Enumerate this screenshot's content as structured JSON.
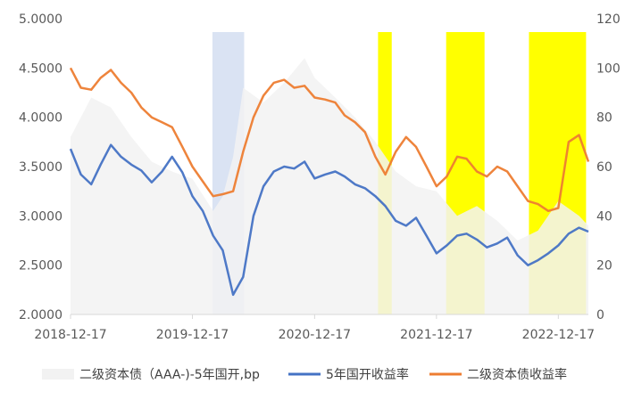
{
  "chart_data": {
    "type": "line",
    "x_ticks": [
      "2018-12-17",
      "2019-12-17",
      "2020-12-17",
      "2021-12-17",
      "2022-12-17"
    ],
    "y_left_ticks": [
      "2.0000",
      "2.5000",
      "3.0000",
      "3.5000",
      "4.0000",
      "4.5000",
      "5.0000"
    ],
    "y_right_ticks": [
      "0",
      "20",
      "40",
      "60",
      "80",
      "100",
      "120"
    ],
    "ylim_left": [
      2.0,
      5.0
    ],
    "ylim_right": [
      0,
      120
    ],
    "grid": false,
    "legend_position": "bottom",
    "series": [
      {
        "name": "二级资本债（AAA-)-5年国开,bp",
        "axis": "right",
        "type": "area",
        "color": "#f2f2f2",
        "x": [
          "2018-12-17",
          "2019-02-17",
          "2019-04-17",
          "2019-06-17",
          "2019-08-17",
          "2019-10-17",
          "2019-12-17",
          "2020-02-17",
          "2020-03-17",
          "2020-04-17",
          "2020-05-17",
          "2020-07-17",
          "2020-09-17",
          "2020-11-17",
          "2020-12-17",
          "2021-02-17",
          "2021-04-17",
          "2021-06-17",
          "2021-08-17",
          "2021-10-17",
          "2021-12-17",
          "2022-02-17",
          "2022-04-17",
          "2022-06-17",
          "2022-08-17",
          "2022-10-17",
          "2022-12-17",
          "2023-02-17",
          "2023-03-17"
        ],
        "values": [
          72,
          88,
          84,
          72,
          62,
          58,
          55,
          42,
          48,
          64,
          92,
          86,
          94,
          104,
          96,
          88,
          80,
          70,
          58,
          52,
          50,
          40,
          44,
          38,
          30,
          34,
          46,
          40,
          36
        ]
      },
      {
        "name": "5年国开收益率",
        "axis": "left",
        "type": "line",
        "color": "#4472c4",
        "x": [
          "2018-12-17",
          "2019-01-17",
          "2019-02-17",
          "2019-03-17",
          "2019-04-17",
          "2019-05-17",
          "2019-06-17",
          "2019-07-17",
          "2019-08-17",
          "2019-09-17",
          "2019-10-17",
          "2019-11-17",
          "2019-12-17",
          "2020-01-17",
          "2020-02-17",
          "2020-03-17",
          "2020-04-17",
          "2020-05-17",
          "2020-06-17",
          "2020-07-17",
          "2020-08-17",
          "2020-09-17",
          "2020-10-17",
          "2020-11-17",
          "2020-12-17",
          "2021-01-17",
          "2021-02-17",
          "2021-03-17",
          "2021-04-17",
          "2021-05-17",
          "2021-06-17",
          "2021-07-17",
          "2021-08-17",
          "2021-09-17",
          "2021-10-17",
          "2021-11-17",
          "2021-12-17",
          "2022-01-17",
          "2022-02-17",
          "2022-03-17",
          "2022-04-17",
          "2022-05-17",
          "2022-06-17",
          "2022-07-17",
          "2022-08-17",
          "2022-09-17",
          "2022-10-17",
          "2022-11-17",
          "2022-12-17",
          "2023-01-17",
          "2023-02-17",
          "2023-03-17"
        ],
        "values": [
          3.68,
          3.42,
          3.32,
          3.52,
          3.72,
          3.6,
          3.52,
          3.46,
          3.34,
          3.45,
          3.6,
          3.44,
          3.2,
          3.05,
          2.8,
          2.65,
          2.2,
          2.38,
          3.0,
          3.3,
          3.45,
          3.5,
          3.48,
          3.55,
          3.38,
          3.42,
          3.45,
          3.4,
          3.32,
          3.28,
          3.2,
          3.1,
          2.95,
          2.9,
          2.98,
          2.8,
          2.62,
          2.7,
          2.8,
          2.82,
          2.76,
          2.68,
          2.72,
          2.78,
          2.6,
          2.5,
          2.55,
          2.62,
          2.7,
          2.82,
          2.88,
          2.84
        ]
      },
      {
        "name": "二级资本债收益率",
        "axis": "left",
        "type": "line",
        "color": "#ed7d31",
        "x": [
          "2018-12-17",
          "2019-01-17",
          "2019-02-17",
          "2019-03-17",
          "2019-04-17",
          "2019-05-17",
          "2019-06-17",
          "2019-07-17",
          "2019-08-17",
          "2019-09-17",
          "2019-10-17",
          "2019-11-17",
          "2019-12-17",
          "2020-01-17",
          "2020-02-17",
          "2020-03-17",
          "2020-04-17",
          "2020-05-17",
          "2020-06-17",
          "2020-07-17",
          "2020-08-17",
          "2020-09-17",
          "2020-10-17",
          "2020-11-17",
          "2020-12-17",
          "2021-01-17",
          "2021-02-17",
          "2021-03-17",
          "2021-04-17",
          "2021-05-17",
          "2021-06-17",
          "2021-07-17",
          "2021-08-17",
          "2021-09-17",
          "2021-10-17",
          "2021-11-17",
          "2021-12-17",
          "2022-01-17",
          "2022-02-17",
          "2022-03-17",
          "2022-04-17",
          "2022-05-17",
          "2022-06-17",
          "2022-07-17",
          "2022-08-17",
          "2022-09-17",
          "2022-10-17",
          "2022-11-17",
          "2022-12-17",
          "2023-01-17",
          "2023-02-17",
          "2023-03-17"
        ],
        "values": [
          4.5,
          4.3,
          4.28,
          4.4,
          4.48,
          4.35,
          4.25,
          4.1,
          4.0,
          3.95,
          3.9,
          3.7,
          3.5,
          3.35,
          3.2,
          3.22,
          3.25,
          3.65,
          4.0,
          4.22,
          4.35,
          4.38,
          4.3,
          4.32,
          4.2,
          4.18,
          4.15,
          4.02,
          3.95,
          3.85,
          3.6,
          3.42,
          3.65,
          3.8,
          3.7,
          3.5,
          3.3,
          3.4,
          3.6,
          3.58,
          3.45,
          3.4,
          3.5,
          3.45,
          3.3,
          3.15,
          3.12,
          3.05,
          3.08,
          3.75,
          3.82,
          3.55
        ]
      }
    ],
    "highlight_bands": [
      {
        "start": "2020-02-15",
        "end": "2020-05-20",
        "color": "#dae3f3"
      },
      {
        "start": "2021-06-25",
        "end": "2021-08-05",
        "color": "#ffff00"
      },
      {
        "start": "2022-01-15",
        "end": "2022-05-10",
        "color": "#ffff00"
      },
      {
        "start": "2022-09-20",
        "end": "2023-03-10",
        "color": "#ffff00"
      }
    ]
  }
}
